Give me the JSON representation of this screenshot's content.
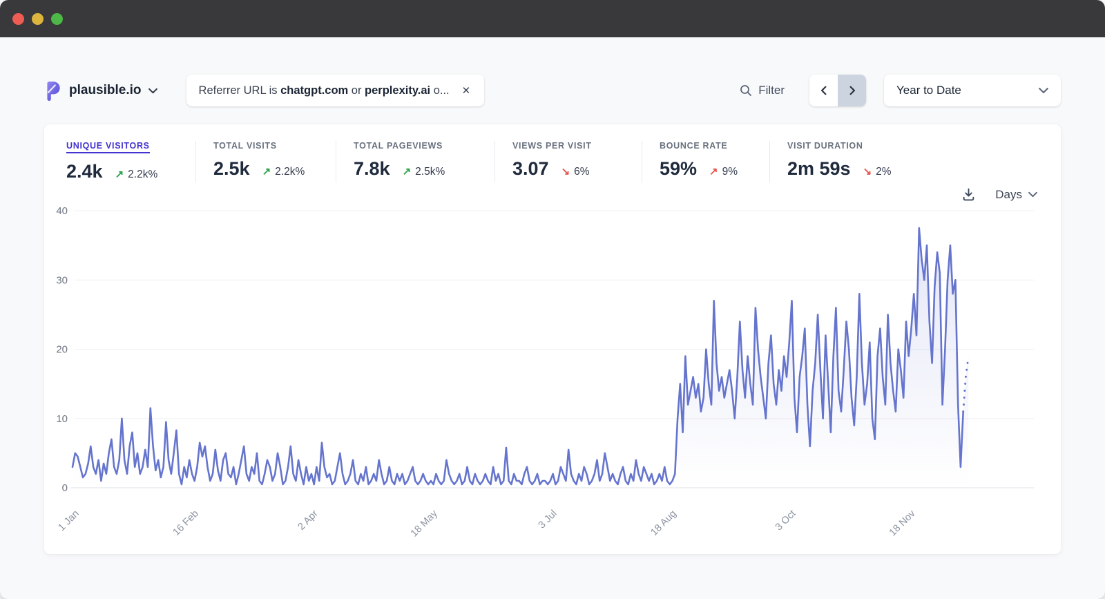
{
  "window": {
    "traffic_lights": {
      "close": "#ee5c54",
      "minimize": "#dcb43e",
      "zoom": "#4db848"
    }
  },
  "topbar": {
    "site": {
      "name": "plausible.io"
    },
    "filter_pill": {
      "prefix": "Referrer URL is ",
      "referrer1": "chatgpt.com",
      "conjunction": " or ",
      "referrer2": "perplexity.ai",
      "suffix": " o...",
      "close_glyph": "✕"
    },
    "filter_button": {
      "label": "Filter"
    },
    "date_picker": {
      "selected": "Year to Date"
    }
  },
  "stats": {
    "items": [
      {
        "label": "UNIQUE VISITORS",
        "value": "2.4k",
        "arrow": "↗",
        "change": "2.2k%",
        "trend_color": "#2aa24a",
        "active": true
      },
      {
        "label": "TOTAL VISITS",
        "value": "2.5k",
        "arrow": "↗",
        "change": "2.2k%",
        "trend_color": "#2aa24a",
        "active": false
      },
      {
        "label": "TOTAL PAGEVIEWS",
        "value": "7.8k",
        "arrow": "↗",
        "change": "2.5k%",
        "trend_color": "#2aa24a",
        "active": false
      },
      {
        "label": "VIEWS PER VISIT",
        "value": "3.07",
        "arrow": "↘",
        "change": "6%",
        "trend_color": "#e8554f",
        "active": false
      },
      {
        "label": "BOUNCE RATE",
        "value": "59%",
        "arrow": "↗",
        "change": "9%",
        "trend_color": "#e8554f",
        "active": false
      },
      {
        "label": "VISIT DURATION",
        "value": "2m 59s",
        "arrow": "↘",
        "change": "2%",
        "trend_color": "#e8554f",
        "active": false
      }
    ]
  },
  "graph_controls": {
    "interval": "Days"
  },
  "chart_data": {
    "type": "line",
    "title": "Unique visitors by day, Year to Date",
    "metric": "Unique visitors",
    "interval": "day",
    "ylim": [
      0,
      40
    ],
    "y_ticks": [
      0,
      10,
      20,
      30,
      40
    ],
    "x_domain_days": 366,
    "x_ticks": [
      {
        "day": 0,
        "label": "1 Jan"
      },
      {
        "day": 46,
        "label": "16 Feb"
      },
      {
        "day": 92,
        "label": "2 Apr"
      },
      {
        "day": 138,
        "label": "18 May"
      },
      {
        "day": 184,
        "label": "3 Jul"
      },
      {
        "day": 230,
        "label": "18 Aug"
      },
      {
        "day": 276,
        "label": "3 Oct"
      },
      {
        "day": 322,
        "label": "18 Nov"
      }
    ],
    "line_color": "#6574cd",
    "area_fill_top": "rgba(101,116,205,0.18)",
    "area_fill_bottom": "rgba(101,116,205,0.0)",
    "grid_color": "#eef0f3",
    "axis_line_color": "#dfe2e7",
    "y_label_color": "#6e7683",
    "x_label_color": "#8b93a0",
    "dashed_tail_points": 3,
    "values": [
      3,
      5,
      4.5,
      3,
      1.5,
      2,
      3.5,
      6,
      3,
      2,
      4,
      1,
      3.5,
      2,
      5,
      7,
      3,
      2,
      4,
      10,
      4,
      2,
      6,
      8,
      3,
      5,
      2,
      3,
      5.5,
      3,
      11.5,
      6,
      2.5,
      4,
      1.5,
      3,
      9.5,
      4,
      2,
      5,
      8.3,
      2,
      0.5,
      3,
      1.5,
      4,
      2,
      1,
      3,
      6.5,
      4.5,
      6,
      3,
      1,
      2,
      5.5,
      2.5,
      1,
      4,
      5,
      2,
      1.5,
      3,
      0.5,
      2,
      4,
      6,
      2,
      1,
      3,
      2,
      5,
      1,
      0.5,
      2,
      4,
      3,
      1,
      2,
      5,
      3,
      0.5,
      1,
      3,
      6,
      2,
      1,
      4,
      2,
      0.5,
      3,
      1,
      2,
      0.5,
      3,
      1,
      6.5,
      3,
      1.5,
      2,
      0.5,
      1,
      3,
      5,
      2,
      0.5,
      1,
      2,
      4,
      1,
      0.5,
      2,
      1,
      3,
      0.5,
      1,
      2,
      1,
      4,
      2,
      0.5,
      1,
      3,
      1,
      0.5,
      2,
      1,
      2,
      0.5,
      1,
      2,
      3,
      1,
      0.5,
      1,
      2,
      1,
      0.5,
      1,
      0.5,
      2,
      1,
      0.5,
      1,
      4,
      2,
      1,
      0.5,
      1,
      2,
      0.5,
      1,
      3,
      1,
      0.5,
      2,
      1,
      0.5,
      1,
      2,
      1,
      0.5,
      3,
      1,
      2,
      0.5,
      1,
      5.8,
      1,
      0.5,
      2,
      1,
      1,
      0.5,
      2,
      3,
      1,
      0.5,
      1,
      2,
      0.5,
      1,
      1,
      0.5,
      1,
      2,
      0.5,
      1,
      3,
      2,
      1,
      5.5,
      2,
      1,
      0.5,
      2,
      1,
      3,
      2,
      0.5,
      1,
      2,
      4,
      1,
      2,
      5,
      3,
      1,
      2,
      1,
      0.5,
      2,
      3,
      1,
      0.5,
      2,
      1,
      4,
      2,
      1,
      3,
      2,
      1,
      2,
      0.5,
      1,
      2,
      1,
      3,
      1,
      0.5,
      1,
      2,
      10,
      15,
      8,
      19,
      12,
      14,
      16,
      13,
      15,
      11,
      13,
      20,
      15,
      12,
      27,
      18,
      14,
      16,
      13,
      15,
      17,
      14,
      10,
      16,
      24,
      17,
      13,
      19,
      15,
      12,
      26,
      20,
      16,
      13,
      10,
      18,
      22,
      15,
      12,
      17,
      14,
      19,
      16,
      21,
      27,
      13,
      8,
      16,
      19,
      23,
      12,
      6,
      14,
      18,
      25,
      17,
      10,
      22,
      15,
      8,
      19,
      26,
      14,
      11,
      17,
      24,
      20,
      13,
      9,
      16,
      28,
      18,
      12,
      15,
      21,
      10,
      7,
      19,
      23,
      16,
      12,
      25,
      18,
      14,
      11,
      20,
      17,
      13,
      24,
      19,
      23,
      28,
      22,
      37.5,
      33,
      30,
      35,
      24,
      18,
      29,
      34,
      31,
      12,
      20,
      30,
      35,
      28,
      30,
      12,
      3,
      11,
      16,
      19
    ]
  }
}
